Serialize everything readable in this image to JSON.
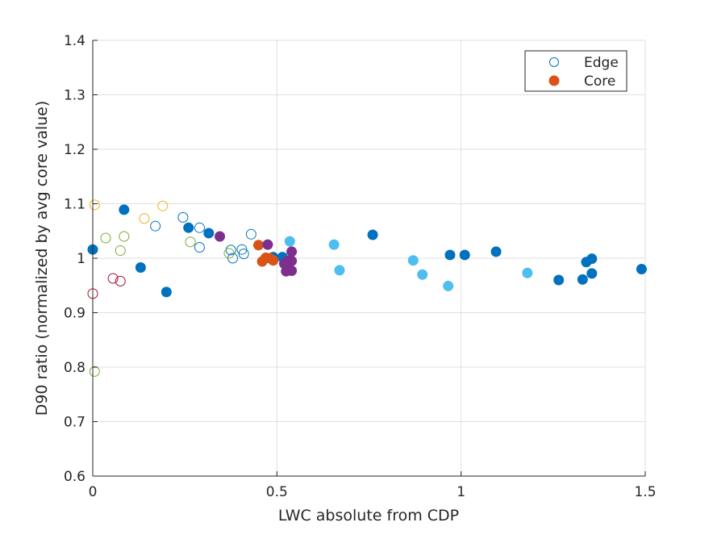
{
  "chart_data": {
    "type": "scatter",
    "xlabel": "LWC absolute from CDP",
    "ylabel": "D90 ratio (normalized by avg core value)",
    "xlim": [
      0,
      1.5
    ],
    "ylim": [
      0.6,
      1.4
    ],
    "xticks": [
      0,
      0.5,
      1,
      1.5
    ],
    "xtick_labels": [
      "0",
      "0.5",
      "1",
      "1.5"
    ],
    "yticks": [
      0.6,
      0.7,
      0.8,
      0.9,
      1.0,
      1.1,
      1.2,
      1.3,
      1.4
    ],
    "ytick_labels": [
      "0.6",
      "0.7",
      "0.8",
      "0.9",
      "1",
      "1.1",
      "1.2",
      "1.3",
      "1.4"
    ],
    "grid": true,
    "legend_position": "top-right",
    "legend": [
      {
        "label": "Edge",
        "marker": "open-circle",
        "color": "#0072BD"
      },
      {
        "label": "Core",
        "marker": "filled-circle",
        "color": "#D95319"
      }
    ],
    "series": [
      {
        "color": "#0072BD",
        "points": [
          {
            "x": 0.0,
            "y": 1.016,
            "filled": true
          },
          {
            "x": 0.085,
            "y": 1.089,
            "filled": true
          },
          {
            "x": 0.13,
            "y": 0.983,
            "filled": true
          },
          {
            "x": 0.2,
            "y": 0.938,
            "filled": true
          },
          {
            "x": 0.26,
            "y": 1.056,
            "filled": true
          },
          {
            "x": 0.315,
            "y": 1.046,
            "filled": true
          },
          {
            "x": 0.49,
            "y": 1.002,
            "filled": true
          },
          {
            "x": 0.515,
            "y": 1.002,
            "filled": true
          },
          {
            "x": 0.76,
            "y": 1.043,
            "filled": true
          },
          {
            "x": 0.97,
            "y": 1.006,
            "filled": true
          },
          {
            "x": 1.01,
            "y": 1.006,
            "filled": true
          },
          {
            "x": 1.095,
            "y": 1.012,
            "filled": true
          },
          {
            "x": 1.265,
            "y": 0.96,
            "filled": true
          },
          {
            "x": 1.33,
            "y": 0.961,
            "filled": true
          },
          {
            "x": 1.34,
            "y": 0.993,
            "filled": true
          },
          {
            "x": 1.355,
            "y": 0.999,
            "filled": true
          },
          {
            "x": 1.355,
            "y": 0.972,
            "filled": true
          },
          {
            "x": 1.49,
            "y": 0.98,
            "filled": true
          },
          {
            "x": 0.17,
            "y": 1.059,
            "filled": false
          },
          {
            "x": 0.245,
            "y": 1.075,
            "filled": false
          },
          {
            "x": 0.29,
            "y": 1.056,
            "filled": false
          },
          {
            "x": 0.29,
            "y": 1.02,
            "filled": false
          },
          {
            "x": 0.375,
            "y": 1.015,
            "filled": false
          },
          {
            "x": 0.38,
            "y": 1.0,
            "filled": false
          },
          {
            "x": 0.405,
            "y": 1.016,
            "filled": false
          },
          {
            "x": 0.41,
            "y": 1.008,
            "filled": false
          },
          {
            "x": 0.43,
            "y": 1.044,
            "filled": false
          }
        ]
      },
      {
        "color": "#4DBEEE",
        "points": [
          {
            "x": 0.535,
            "y": 1.031,
            "filled": true
          },
          {
            "x": 0.655,
            "y": 1.025,
            "filled": true
          },
          {
            "x": 0.67,
            "y": 0.978,
            "filled": true
          },
          {
            "x": 0.87,
            "y": 0.996,
            "filled": true
          },
          {
            "x": 0.895,
            "y": 0.97,
            "filled": true
          },
          {
            "x": 0.965,
            "y": 0.949,
            "filled": true
          },
          {
            "x": 1.18,
            "y": 0.973,
            "filled": true
          }
        ]
      },
      {
        "color": "#D95319",
        "points": [
          {
            "x": 0.45,
            "y": 1.024,
            "filled": true
          },
          {
            "x": 0.46,
            "y": 0.994,
            "filled": true
          },
          {
            "x": 0.47,
            "y": 1.001,
            "filled": true
          },
          {
            "x": 0.48,
            "y": 1.0,
            "filled": true
          },
          {
            "x": 0.49,
            "y": 0.996,
            "filled": true
          }
        ]
      },
      {
        "color": "#7E2F8E",
        "points": [
          {
            "x": 0.345,
            "y": 1.04,
            "filled": true
          },
          {
            "x": 0.475,
            "y": 1.025,
            "filled": true
          },
          {
            "x": 0.52,
            "y": 0.99,
            "filled": true
          },
          {
            "x": 0.525,
            "y": 0.976,
            "filled": true
          },
          {
            "x": 0.53,
            "y": 0.995,
            "filled": true
          },
          {
            "x": 0.535,
            "y": 0.978,
            "filled": true
          },
          {
            "x": 0.54,
            "y": 1.012,
            "filled": true
          },
          {
            "x": 0.54,
            "y": 0.995,
            "filled": true
          },
          {
            "x": 0.54,
            "y": 0.977,
            "filled": true
          }
        ]
      },
      {
        "color": "#EDB120",
        "points": [
          {
            "x": 0.005,
            "y": 1.098,
            "filled": false
          },
          {
            "x": 0.14,
            "y": 1.073,
            "filled": false
          },
          {
            "x": 0.19,
            "y": 1.096,
            "filled": false
          }
        ]
      },
      {
        "color": "#77AC30",
        "points": [
          {
            "x": 0.005,
            "y": 0.792,
            "filled": false
          },
          {
            "x": 0.035,
            "y": 1.037,
            "filled": false
          },
          {
            "x": 0.075,
            "y": 1.014,
            "filled": false
          },
          {
            "x": 0.085,
            "y": 1.04,
            "filled": false
          },
          {
            "x": 0.265,
            "y": 1.03,
            "filled": false
          },
          {
            "x": 0.37,
            "y": 1.009,
            "filled": false
          }
        ]
      },
      {
        "color": "#A2142F",
        "points": [
          {
            "x": 0.0,
            "y": 0.935,
            "filled": false
          },
          {
            "x": 0.055,
            "y": 0.963,
            "filled": false
          },
          {
            "x": 0.075,
            "y": 0.958,
            "filled": false
          }
        ]
      }
    ]
  }
}
